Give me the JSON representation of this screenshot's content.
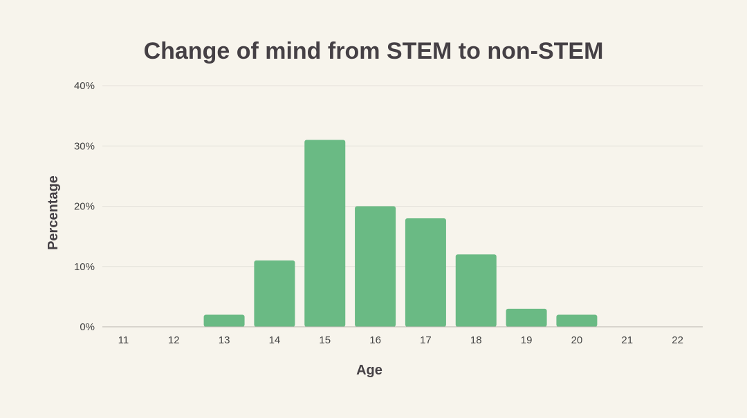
{
  "chart_data": {
    "type": "bar",
    "title": "Change of mind from STEM to non-STEM",
    "xlabel": "Age",
    "ylabel": "Percentage",
    "categories": [
      "11",
      "12",
      "13",
      "14",
      "15",
      "16",
      "17",
      "18",
      "19",
      "20",
      "21",
      "22"
    ],
    "values": [
      0,
      0,
      2,
      11,
      31,
      20,
      18,
      12,
      3,
      2,
      0,
      0
    ],
    "ylim": [
      0,
      40
    ],
    "yticks": [
      "0%",
      "10%",
      "20%",
      "30%",
      "40%"
    ],
    "ytick_values": [
      0,
      10,
      20,
      30,
      40
    ],
    "grid": true,
    "bar_color": "#6aba84",
    "background_color": "#f7f4ec"
  }
}
